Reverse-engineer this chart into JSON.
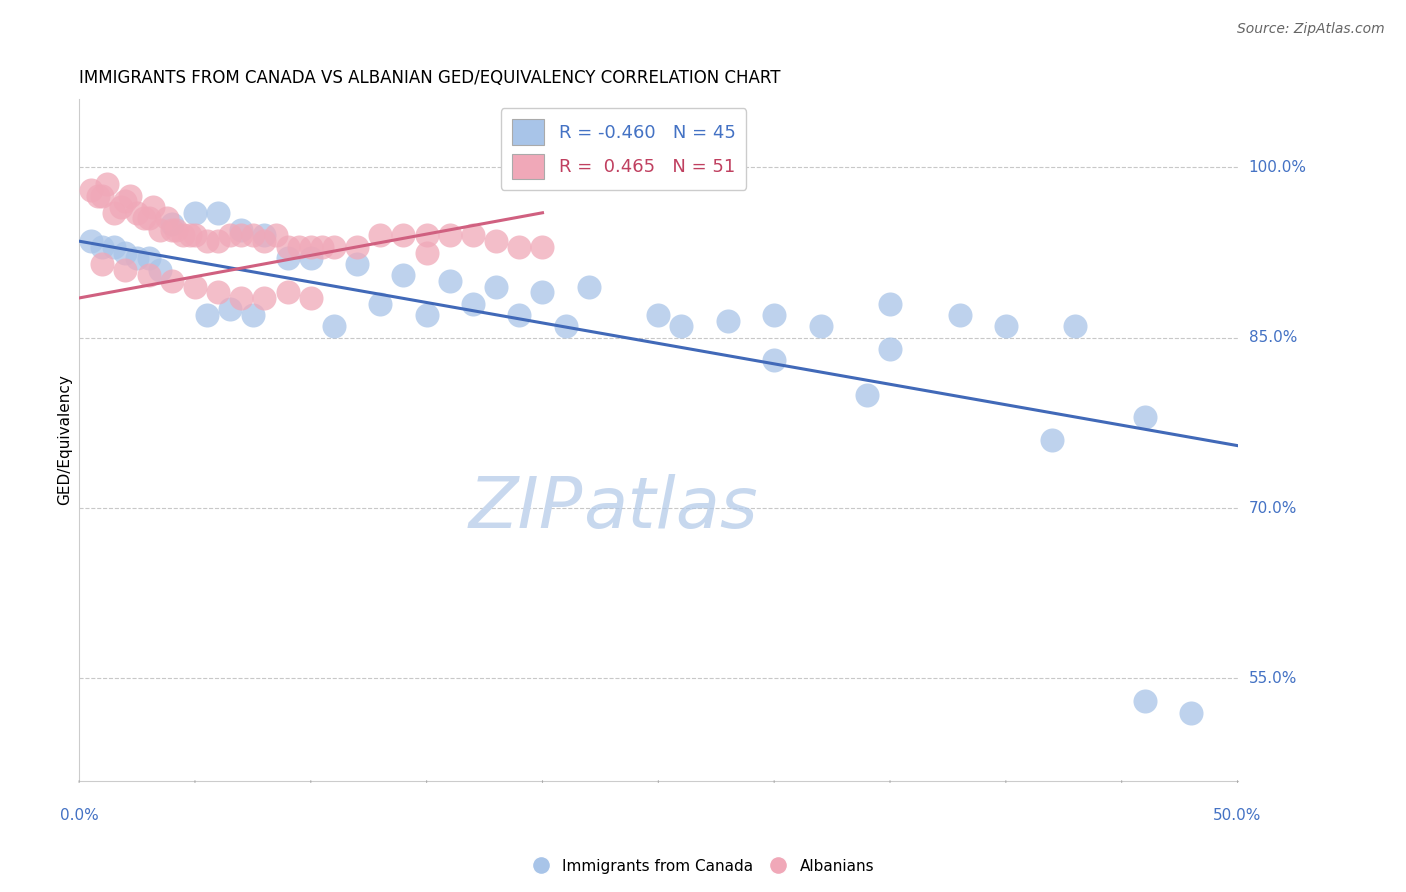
{
  "title": "IMMIGRANTS FROM CANADA VS ALBANIAN GED/EQUIVALENCY CORRELATION CHART",
  "source": "Source: ZipAtlas.com",
  "ylabel": "GED/Equivalency",
  "yticks": [
    0.55,
    0.7,
    0.85,
    1.0
  ],
  "ytick_labels": [
    "55.0%",
    "70.0%",
    "85.0%",
    "100.0%"
  ],
  "xmin": 0.0,
  "xmax": 0.5,
  "ymin": 0.46,
  "ymax": 1.06,
  "legend_blue_r": "-0.460",
  "legend_blue_n": "45",
  "legend_pink_r": "0.465",
  "legend_pink_n": "51",
  "blue_color": "#a8c4e8",
  "pink_color": "#f0a8b8",
  "blue_line_color": "#4169b8",
  "pink_line_color": "#d06080",
  "watermark_zip": "ZIP",
  "watermark_atlas": "atlas",
  "blue_x": [
    0.005,
    0.01,
    0.015,
    0.02,
    0.025,
    0.03,
    0.035,
    0.04,
    0.05,
    0.06,
    0.07,
    0.08,
    0.09,
    0.1,
    0.12,
    0.14,
    0.16,
    0.18,
    0.2,
    0.22,
    0.13,
    0.15,
    0.17,
    0.19,
    0.25,
    0.28,
    0.3,
    0.32,
    0.35,
    0.38,
    0.4,
    0.43,
    0.46,
    0.48,
    0.35,
    0.3,
    0.26,
    0.21,
    0.11,
    0.055,
    0.065,
    0.075,
    0.34,
    0.42,
    0.46
  ],
  "blue_y": [
    0.935,
    0.93,
    0.93,
    0.925,
    0.92,
    0.92,
    0.91,
    0.95,
    0.96,
    0.96,
    0.945,
    0.94,
    0.92,
    0.92,
    0.915,
    0.905,
    0.9,
    0.895,
    0.89,
    0.895,
    0.88,
    0.87,
    0.88,
    0.87,
    0.87,
    0.865,
    0.87,
    0.86,
    0.88,
    0.87,
    0.86,
    0.86,
    0.53,
    0.52,
    0.84,
    0.83,
    0.86,
    0.86,
    0.86,
    0.87,
    0.875,
    0.87,
    0.8,
    0.76,
    0.78
  ],
  "pink_x": [
    0.005,
    0.008,
    0.01,
    0.012,
    0.015,
    0.018,
    0.02,
    0.022,
    0.025,
    0.028,
    0.03,
    0.032,
    0.035,
    0.038,
    0.04,
    0.042,
    0.045,
    0.048,
    0.05,
    0.055,
    0.06,
    0.065,
    0.07,
    0.075,
    0.08,
    0.085,
    0.09,
    0.095,
    0.1,
    0.105,
    0.11,
    0.12,
    0.13,
    0.14,
    0.15,
    0.16,
    0.17,
    0.18,
    0.19,
    0.2,
    0.01,
    0.02,
    0.03,
    0.04,
    0.05,
    0.06,
    0.07,
    0.08,
    0.09,
    0.1,
    0.15
  ],
  "pink_y": [
    0.98,
    0.975,
    0.975,
    0.985,
    0.96,
    0.965,
    0.97,
    0.975,
    0.96,
    0.955,
    0.955,
    0.965,
    0.945,
    0.955,
    0.945,
    0.945,
    0.94,
    0.94,
    0.94,
    0.935,
    0.935,
    0.94,
    0.94,
    0.94,
    0.935,
    0.94,
    0.93,
    0.93,
    0.93,
    0.93,
    0.93,
    0.93,
    0.94,
    0.94,
    0.94,
    0.94,
    0.94,
    0.935,
    0.93,
    0.93,
    0.915,
    0.91,
    0.905,
    0.9,
    0.895,
    0.89,
    0.885,
    0.885,
    0.89,
    0.885,
    0.925
  ],
  "blue_trendline_x": [
    0.0,
    0.5
  ],
  "blue_trendline_y": [
    0.935,
    0.755
  ],
  "pink_trendline_x": [
    0.0,
    0.2
  ],
  "pink_trendline_y": [
    0.885,
    0.96
  ]
}
